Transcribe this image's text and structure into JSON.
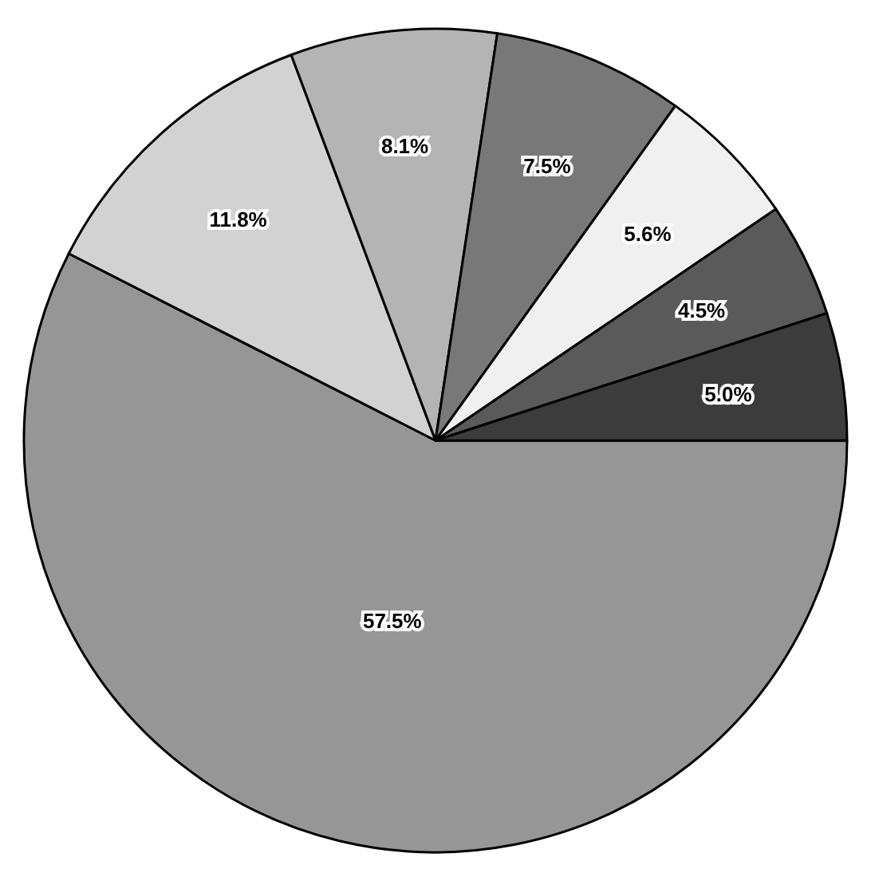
{
  "chart_data": {
    "type": "pie",
    "categories": [
      null,
      null,
      null,
      null,
      null,
      null,
      null
    ],
    "values": [
      57.5,
      11.8,
      8.1,
      7.5,
      5.6,
      4.5,
      5.0
    ],
    "colors": [
      "#969696",
      "#d2d2d2",
      "#b4b4b4",
      "#787878",
      "#f0f0f0",
      "#5a5a5a",
      "#3c3c3c"
    ],
    "value_labels": [
      "57.5%",
      "11.8%",
      "8.1%",
      "7.5%",
      "5.6%",
      "4.5%",
      "5.0%"
    ]
  }
}
